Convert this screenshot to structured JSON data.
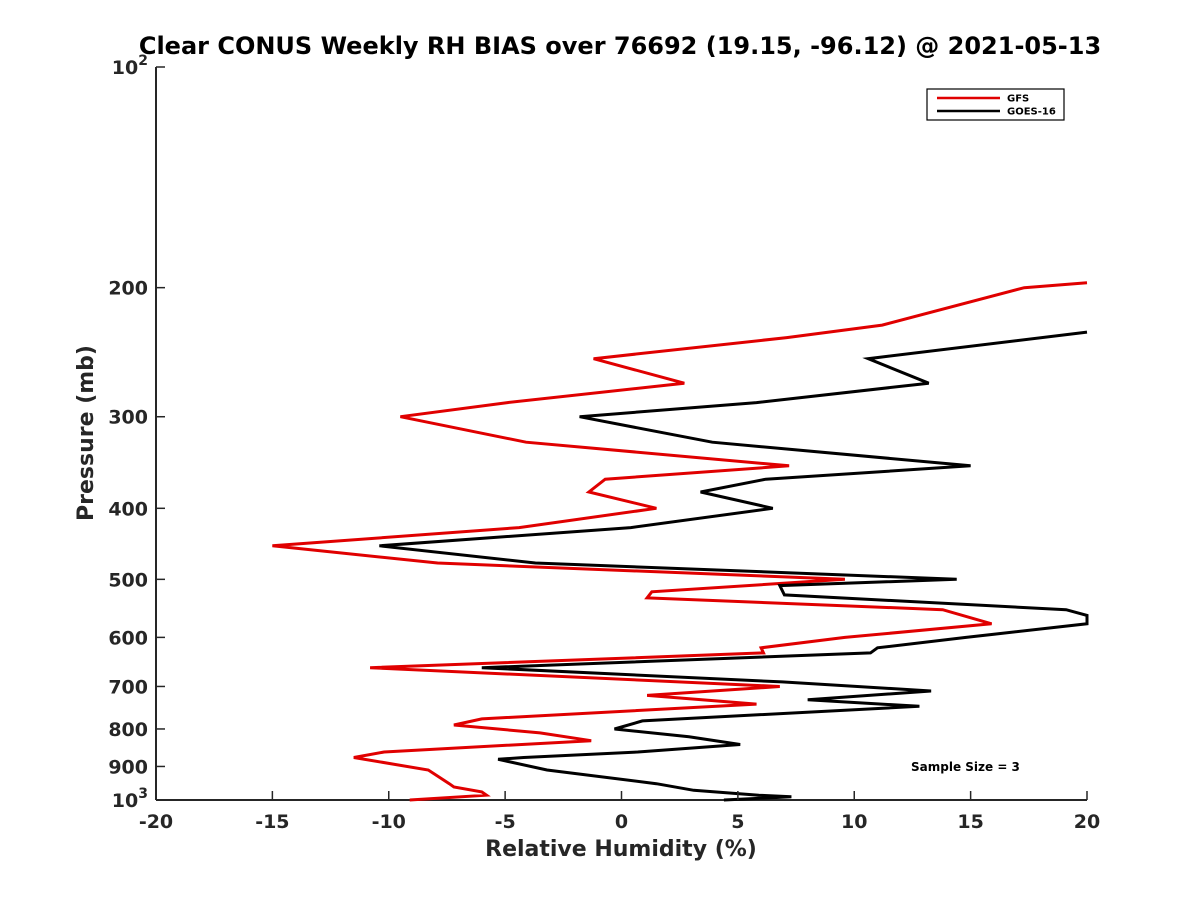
{
  "chart_data": {
    "type": "line",
    "title": "Clear CONUS Weekly RH BIAS over 76692 (19.15, -96.12) @ 2021-05-13",
    "xlabel": "Relative Humidity (%)",
    "ylabel": "Pressure (mb)",
    "xlim": [
      -20,
      20
    ],
    "ylim": [
      100,
      1000
    ],
    "yscale": "log",
    "y_reversed": true,
    "grid": false,
    "legend_position": "top-right",
    "xticks": [
      "-20",
      "-15",
      "-10",
      "-5",
      "0",
      "5",
      "10",
      "15",
      "20"
    ],
    "xtick_values": [
      -20,
      -15,
      -10,
      -5,
      0,
      5,
      10,
      15,
      20
    ],
    "yticks": [
      "200",
      "300",
      "400",
      "500",
      "600",
      "700",
      "800",
      "900"
    ],
    "ytick_values": [
      200,
      300,
      400,
      500,
      600,
      700,
      800,
      900
    ],
    "ytick_edge": [
      {
        "value": 100,
        "base": "10",
        "exp": "2"
      },
      {
        "value": 1000,
        "base": "10",
        "exp": "3"
      }
    ],
    "annotation": "Sample Size = 3",
    "series": [
      {
        "name": "GFS",
        "color": "#e00000",
        "points": [
          [
            20.0,
            197
          ],
          [
            17.3,
            200
          ],
          [
            11.2,
            225
          ],
          [
            7.1,
            234
          ],
          [
            -1.2,
            250
          ],
          [
            2.7,
            270
          ],
          [
            -4.9,
            287
          ],
          [
            -9.5,
            300
          ],
          [
            -4.1,
            325
          ],
          [
            7.2,
            350
          ],
          [
            -0.7,
            365
          ],
          [
            -1.4,
            380
          ],
          [
            1.5,
            400
          ],
          [
            -4.4,
            425
          ],
          [
            -15.0,
            450
          ],
          [
            -7.9,
            475
          ],
          [
            9.6,
            500
          ],
          [
            1.3,
            520
          ],
          [
            1.1,
            530
          ],
          [
            13.8,
            550
          ],
          [
            15.9,
            575
          ],
          [
            9.6,
            600
          ],
          [
            6.0,
            620
          ],
          [
            6.1,
            630
          ],
          [
            -10.8,
            660
          ],
          [
            6.8,
            700
          ],
          [
            1.1,
            720
          ],
          [
            5.8,
            740
          ],
          [
            -6.0,
            775
          ],
          [
            -7.2,
            790
          ],
          [
            -3.5,
            810
          ],
          [
            -1.3,
            830
          ],
          [
            -10.2,
            860
          ],
          [
            -11.5,
            875
          ],
          [
            -8.3,
            910
          ],
          [
            -7.4,
            950
          ],
          [
            -7.2,
            960
          ],
          [
            -6.0,
            975
          ],
          [
            -5.8,
            985
          ],
          [
            -9.1,
            1000
          ]
        ]
      },
      {
        "name": "GOES-16",
        "color": "#000000",
        "points": [
          [
            20.0,
            230
          ],
          [
            10.6,
            250
          ],
          [
            13.2,
            270
          ],
          [
            5.8,
            287
          ],
          [
            -1.8,
            300
          ],
          [
            3.9,
            325
          ],
          [
            15.0,
            350
          ],
          [
            6.2,
            365
          ],
          [
            3.4,
            380
          ],
          [
            6.5,
            400
          ],
          [
            0.4,
            425
          ],
          [
            -10.4,
            450
          ],
          [
            -3.7,
            475
          ],
          [
            14.4,
            500
          ],
          [
            6.8,
            510
          ],
          [
            7.0,
            525
          ],
          [
            19.1,
            550
          ],
          [
            20.0,
            560
          ],
          [
            20.0,
            575
          ],
          [
            14.8,
            600
          ],
          [
            11.0,
            620
          ],
          [
            10.7,
            630
          ],
          [
            -6.0,
            660
          ],
          [
            6.9,
            690
          ],
          [
            13.3,
            710
          ],
          [
            8.0,
            730
          ],
          [
            12.8,
            745
          ],
          [
            0.9,
            780
          ],
          [
            -0.3,
            800
          ],
          [
            2.9,
            820
          ],
          [
            5.1,
            840
          ],
          [
            0.7,
            860
          ],
          [
            -4.2,
            875
          ],
          [
            -5.3,
            880
          ],
          [
            -3.2,
            910
          ],
          [
            1.5,
            950
          ],
          [
            3.1,
            970
          ],
          [
            5.9,
            985
          ],
          [
            7.3,
            990
          ],
          [
            4.4,
            1000
          ]
        ]
      }
    ]
  }
}
